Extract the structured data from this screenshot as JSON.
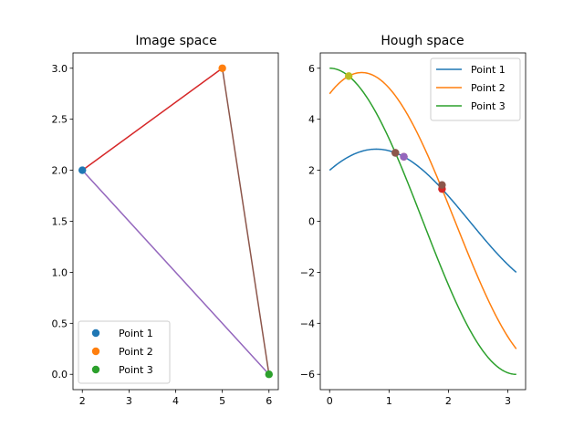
{
  "chart_data": [
    {
      "type": "scatter",
      "title": "Image space",
      "xlabel": "",
      "ylabel": "",
      "xlim": [
        1.8,
        6.2
      ],
      "ylim": [
        -0.15,
        3.15
      ],
      "xticks": [
        2,
        3,
        4,
        5,
        6
      ],
      "yticks": [
        0.0,
        0.5,
        1.0,
        1.5,
        2.0,
        2.5,
        3.0
      ],
      "xtick_labels": [
        "2",
        "3",
        "4",
        "5",
        "6"
      ],
      "ytick_labels": [
        "0.0",
        "0.5",
        "1.0",
        "1.5",
        "2.0",
        "2.5",
        "3.0"
      ],
      "points": [
        {
          "name": "Point 1",
          "x": 2,
          "y": 2,
          "color": "#1f77b4"
        },
        {
          "name": "Point 2",
          "x": 5,
          "y": 3,
          "color": "#ff7f0e"
        },
        {
          "name": "Point 3",
          "x": 6,
          "y": 0,
          "color": "#2ca02c"
        }
      ],
      "lines": [
        {
          "from": [
            2,
            2
          ],
          "to": [
            5,
            3
          ],
          "color": "#d62728"
        },
        {
          "from": [
            5,
            3
          ],
          "to": [
            6,
            0
          ],
          "color": "#8c564b"
        },
        {
          "from": [
            2,
            2
          ],
          "to": [
            6,
            0
          ],
          "color": "#9467bd"
        }
      ],
      "legend": {
        "position": "lower-left",
        "entries": [
          "Point 1",
          "Point 2",
          "Point 3"
        ]
      },
      "grid": false
    },
    {
      "type": "line",
      "title": "Hough space",
      "xlabel": "",
      "ylabel": "",
      "xlim": [
        -0.157,
        3.299
      ],
      "ylim": [
        -6.6,
        6.6
      ],
      "xticks": [
        0,
        1,
        2,
        3
      ],
      "yticks": [
        -6,
        -4,
        -2,
        0,
        2,
        4,
        6
      ],
      "xtick_labels": [
        "0",
        "1",
        "2",
        "3"
      ],
      "ytick_labels": [
        "−6",
        "−4",
        "−2",
        "0",
        "2",
        "4",
        "6"
      ],
      "series": [
        {
          "name": "Point 1",
          "x_coef": 2,
          "y_coef": 2,
          "theta_range": [
            0,
            3.1416
          ],
          "color": "#1f77b4"
        },
        {
          "name": "Point 2",
          "x_coef": 5,
          "y_coef": 3,
          "theta_range": [
            0,
            3.1416
          ],
          "color": "#ff7f0e"
        },
        {
          "name": "Point 3",
          "x_coef": 6,
          "y_coef": 0,
          "theta_range": [
            0,
            3.1416
          ],
          "color": "#2ca02c"
        }
      ],
      "intersections": [
        {
          "theta": 1.249,
          "rho": 2.53,
          "color": "#d62728"
        },
        {
          "theta": 0.322,
          "rho": 5.692,
          "color": "#bcbd22"
        },
        {
          "theta": 1.107,
          "rho": 2.683,
          "color": "#7f7f7f"
        },
        {
          "theta": 1.107,
          "rho": 2.683,
          "color": "#8c564b"
        },
        {
          "theta": 1.892,
          "rho": 1.265,
          "color": "#d62728"
        },
        {
          "theta": 1.892,
          "rho": 1.423,
          "color": "#8c564b"
        },
        {
          "theta": 1.249,
          "rho": 2.53,
          "color": "#9467bd"
        }
      ],
      "legend": {
        "position": "top-right",
        "entries": [
          "Point 1",
          "Point 2",
          "Point 3"
        ]
      },
      "grid": false
    }
  ]
}
